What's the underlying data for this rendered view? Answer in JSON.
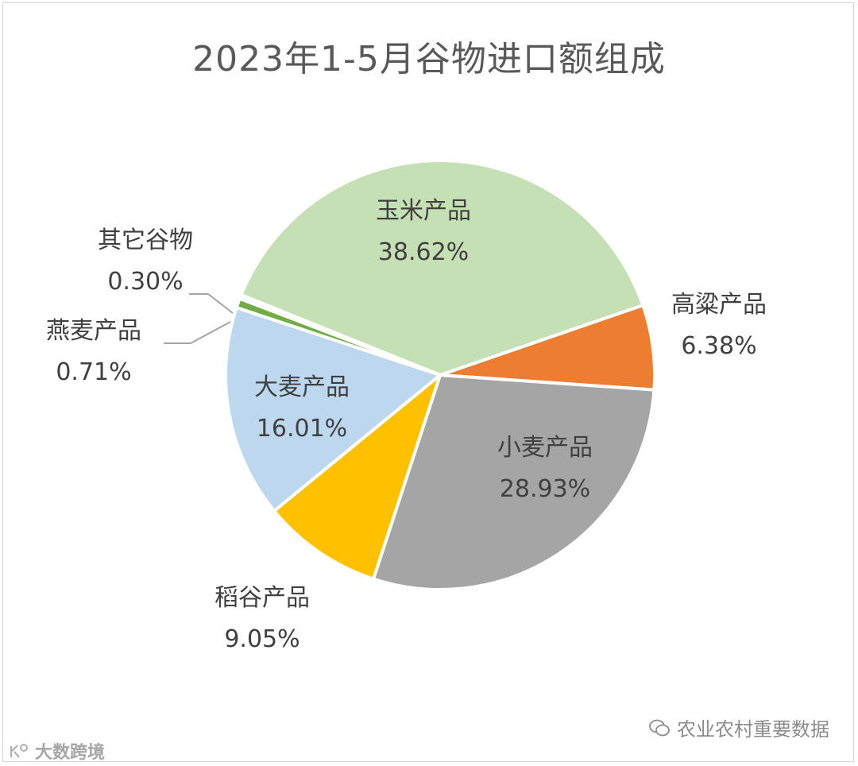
{
  "chart_data": {
    "type": "pie",
    "title": "2023年1-5月谷物进口额组成",
    "slices": [
      {
        "name": "高粱产品",
        "value": 6.38,
        "label": "6.38%",
        "color": "#ED7D31"
      },
      {
        "name": "小麦产品",
        "value": 28.93,
        "label": "28.93%",
        "color": "#A5A5A5"
      },
      {
        "name": "稻谷产品",
        "value": 9.05,
        "label": "9.05%",
        "color": "#FFC000"
      },
      {
        "name": "大麦产品",
        "value": 16.01,
        "label": "16.01%",
        "color": "#BDD7EE"
      },
      {
        "name": "燕麦产品",
        "value": 0.71,
        "label": "0.71%",
        "color": "#70AD47"
      },
      {
        "name": "其它谷物",
        "value": 0.3,
        "label": "0.30%",
        "color": "#F2F2F2"
      },
      {
        "name": "玉米产品",
        "value": 38.62,
        "label": "38.62%",
        "color": "#C5E0B4"
      }
    ]
  },
  "watermarks": {
    "right": "农业农村重要数据",
    "left": "大数跨境"
  }
}
